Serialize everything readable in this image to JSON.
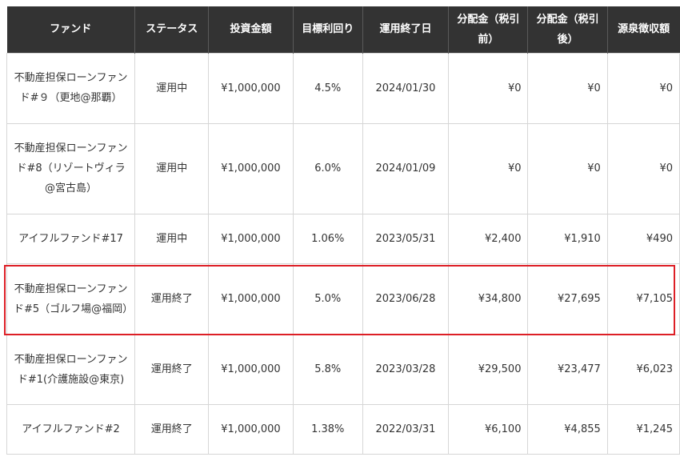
{
  "headers": {
    "fund": "ファンド",
    "status": "ステータス",
    "amount": "投資金額",
    "target_yield": "目標利回り",
    "end_date": "運用終了日",
    "dist_pre_tax": "分配金（税引前）",
    "dist_after_tax": "分配金（税引後）",
    "withholding": "源泉徴収額"
  },
  "rows": [
    {
      "fund": "不動産担保ローンファンド#９（更地@那覇）",
      "status": "運用中",
      "amount": "¥1,000,000",
      "target_yield": "4.5%",
      "end_date": "2024/01/30",
      "dist_pre_tax": "¥0",
      "dist_after_tax": "¥0",
      "withholding": "¥0"
    },
    {
      "fund": "不動産担保ローンファンド#8（リゾートヴィラ@宮古島）",
      "status": "運用中",
      "amount": "¥1,000,000",
      "target_yield": "6.0%",
      "end_date": "2024/01/09",
      "dist_pre_tax": "¥0",
      "dist_after_tax": "¥0",
      "withholding": "¥0"
    },
    {
      "fund": "アイフルファンド#17",
      "status": "運用中",
      "amount": "¥1,000,000",
      "target_yield": "1.06%",
      "end_date": "2023/05/31",
      "dist_pre_tax": "¥2,400",
      "dist_after_tax": "¥1,910",
      "withholding": "¥490"
    },
    {
      "fund": "不動産担保ローンファンド#5（ゴルフ場@福岡）",
      "status": "運用終了",
      "amount": "¥1,000,000",
      "target_yield": "5.0%",
      "end_date": "2023/06/28",
      "dist_pre_tax": "¥34,800",
      "dist_after_tax": "¥27,695",
      "withholding": "¥7,105"
    },
    {
      "fund": "不動産担保ローンファンド#1(介護施設@東京)",
      "status": "運用終了",
      "amount": "¥1,000,000",
      "target_yield": "5.8%",
      "end_date": "2023/03/28",
      "dist_pre_tax": "¥29,500",
      "dist_after_tax": "¥23,477",
      "withholding": "¥6,023"
    },
    {
      "fund": "アイフルファンド#2",
      "status": "運用終了",
      "amount": "¥1,000,000",
      "target_yield": "1.38%",
      "end_date": "2022/03/31",
      "dist_pre_tax": "¥6,100",
      "dist_after_tax": "¥4,855",
      "withholding": "¥1,245"
    }
  ],
  "colors": {
    "header_bg": "#333333",
    "header_text": "#ffffff",
    "highlight_border": "#dd1f26",
    "grid_line": "#d6d6d6"
  }
}
